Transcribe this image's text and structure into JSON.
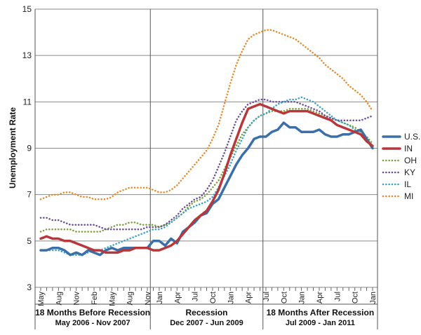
{
  "chart_data": {
    "type": "line",
    "ylabel": "Unemployment Rate",
    "ylim": [
      3,
      15
    ],
    "yticks": [
      3,
      5,
      7,
      9,
      11,
      13,
      15
    ],
    "grid": "horizontal",
    "legend_position": "right",
    "x": [
      "May",
      "Jun",
      "Jul",
      "Aug",
      "Sep",
      "Oct",
      "Nov",
      "Dec",
      "Jan",
      "Feb",
      "Mar",
      "Apr",
      "May",
      "Jun",
      "Jul",
      "Aug",
      "Sep",
      "Oct",
      "Nov",
      "Dec",
      "Jan",
      "Feb",
      "Mar",
      "Apr",
      "May",
      "Jun",
      "Jul",
      "Aug",
      "Sep",
      "Oct",
      "Nov",
      "Dec",
      "Jan",
      "Feb",
      "Mar",
      "Apr",
      "May",
      "Jun",
      "Jul",
      "Aug",
      "Sep",
      "Oct",
      "Nov",
      "Dec",
      "Jan",
      "Feb",
      "Mar",
      "Apr",
      "May",
      "Jun",
      "Jul",
      "Aug",
      "Sep",
      "Oct",
      "Nov",
      "Dec",
      "Jan"
    ],
    "x_tick_labels": [
      {
        "i": 0,
        "label": "May"
      },
      {
        "i": 3,
        "label": "Aug"
      },
      {
        "i": 6,
        "label": "Nov"
      },
      {
        "i": 9,
        "label": "Feb"
      },
      {
        "i": 12,
        "label": "May"
      },
      {
        "i": 15,
        "label": "Aug"
      },
      {
        "i": 18,
        "label": "Nov"
      },
      {
        "i": 20,
        "label": "Jan"
      },
      {
        "i": 23,
        "label": "Apr"
      },
      {
        "i": 26,
        "label": "Jul"
      },
      {
        "i": 29,
        "label": "Oct"
      },
      {
        "i": 32,
        "label": "Jan"
      },
      {
        "i": 35,
        "label": "Apr"
      },
      {
        "i": 38,
        "label": "Jul"
      },
      {
        "i": 41,
        "label": "Oct"
      },
      {
        "i": 44,
        "label": "Jan"
      },
      {
        "i": 47,
        "label": "Apr"
      },
      {
        "i": 50,
        "label": "Jul"
      },
      {
        "i": 53,
        "label": "Oct"
      },
      {
        "i": 56,
        "label": "Jan"
      }
    ],
    "periods": [
      {
        "title": "18 Months Before Recession",
        "subtitle": "May 2006 - Nov 2007",
        "start": 0,
        "end": 18
      },
      {
        "title": "Recession",
        "subtitle": "Dec 2007 - Jun 2009",
        "start": 19,
        "end": 37
      },
      {
        "title": "18 Months After Recession",
        "subtitle": "Jul 2009 - Jan 2011",
        "start": 38,
        "end": 56
      }
    ],
    "series": [
      {
        "name": "U.S.",
        "color": "#3b6fa8",
        "style": "solid",
        "width": 3.5,
        "values": [
          4.6,
          4.6,
          4.7,
          4.7,
          4.6,
          4.4,
          4.5,
          4.4,
          4.6,
          4.5,
          4.4,
          4.6,
          4.7,
          4.6,
          4.7,
          4.7,
          4.7,
          4.7,
          4.7,
          5.0,
          5.0,
          4.8,
          5.1,
          4.9,
          5.4,
          5.6,
          5.8,
          6.1,
          6.2,
          6.6,
          6.8,
          7.3,
          7.8,
          8.3,
          8.7,
          9.0,
          9.4,
          9.5,
          9.5,
          9.7,
          9.8,
          10.1,
          9.9,
          9.9,
          9.7,
          9.7,
          9.7,
          9.8,
          9.6,
          9.5,
          9.5,
          9.6,
          9.6,
          9.7,
          9.8,
          9.4,
          9.0
        ]
      },
      {
        "name": "IN",
        "color": "#b8373a",
        "style": "solid",
        "width": 3.5,
        "values": [
          5.1,
          5.2,
          5.1,
          5.1,
          5.0,
          5.0,
          4.9,
          4.8,
          4.7,
          4.6,
          4.6,
          4.5,
          4.5,
          4.5,
          4.6,
          4.6,
          4.7,
          4.7,
          4.7,
          4.6,
          4.6,
          4.7,
          4.8,
          5.0,
          5.3,
          5.6,
          5.9,
          6.1,
          6.3,
          6.7,
          7.2,
          7.9,
          8.7,
          9.4,
          10.1,
          10.7,
          10.8,
          10.9,
          10.8,
          10.7,
          10.6,
          10.5,
          10.6,
          10.6,
          10.6,
          10.6,
          10.5,
          10.4,
          10.3,
          10.2,
          10.0,
          9.9,
          9.8,
          9.7,
          9.6,
          9.3,
          9.1
        ]
      },
      {
        "name": "OH",
        "color": "#7aa03c",
        "style": "dotted",
        "width": 2.5,
        "values": [
          5.4,
          5.5,
          5.5,
          5.5,
          5.5,
          5.5,
          5.4,
          5.4,
          5.4,
          5.4,
          5.4,
          5.5,
          5.6,
          5.7,
          5.7,
          5.8,
          5.8,
          5.7,
          5.7,
          5.7,
          5.6,
          5.7,
          5.8,
          6.0,
          6.2,
          6.5,
          6.7,
          6.8,
          7.0,
          7.3,
          7.6,
          8.1,
          8.6,
          9.1,
          9.6,
          9.9,
          10.2,
          10.4,
          10.5,
          10.6,
          10.6,
          10.6,
          10.7,
          10.7,
          10.7,
          10.7,
          10.6,
          10.5,
          10.4,
          10.3,
          10.2,
          10.1,
          10.0,
          9.9,
          9.7,
          9.5,
          9.2
        ]
      },
      {
        "name": "KY",
        "color": "#6b4c9a",
        "style": "dotted",
        "width": 2.5,
        "values": [
          6.0,
          6.0,
          5.9,
          5.9,
          5.8,
          5.7,
          5.7,
          5.7,
          5.7,
          5.7,
          5.6,
          5.5,
          5.5,
          5.5,
          5.5,
          5.5,
          5.5,
          5.5,
          5.6,
          5.6,
          5.6,
          5.7,
          5.9,
          6.1,
          6.4,
          6.6,
          6.8,
          6.9,
          7.2,
          7.6,
          8.2,
          8.8,
          9.5,
          10.2,
          10.6,
          10.9,
          11.0,
          11.1,
          11.1,
          11.0,
          11.0,
          11.0,
          11.0,
          11.0,
          10.9,
          10.8,
          10.7,
          10.6,
          10.4,
          10.3,
          10.2,
          10.2,
          10.2,
          10.2,
          10.2,
          10.3,
          10.4
        ]
      },
      {
        "name": "IL",
        "color": "#3aa3c4",
        "style": "dotted",
        "width": 2.5,
        "values": [
          4.6,
          4.6,
          4.6,
          4.6,
          4.5,
          4.4,
          4.4,
          4.4,
          4.5,
          4.6,
          4.6,
          4.7,
          4.8,
          4.9,
          5.0,
          5.1,
          5.2,
          5.3,
          5.4,
          5.5,
          5.5,
          5.6,
          5.8,
          6.0,
          6.2,
          6.4,
          6.5,
          6.6,
          6.7,
          6.9,
          7.3,
          7.8,
          8.3,
          8.9,
          9.4,
          9.9,
          10.2,
          10.4,
          10.5,
          10.7,
          10.9,
          11.0,
          11.1,
          11.1,
          11.2,
          11.1,
          11.0,
          10.8,
          10.6,
          10.4,
          10.2,
          10.1,
          10.0,
          9.8,
          9.6,
          9.4,
          9.1
        ]
      },
      {
        "name": "MI",
        "color": "#e8892c",
        "style": "dotted",
        "width": 2.5,
        "values": [
          6.8,
          6.9,
          7.0,
          7.0,
          7.1,
          7.1,
          7.0,
          6.9,
          6.9,
          6.8,
          6.8,
          6.8,
          6.9,
          7.1,
          7.2,
          7.3,
          7.3,
          7.3,
          7.3,
          7.2,
          7.1,
          7.1,
          7.2,
          7.4,
          7.7,
          8.0,
          8.3,
          8.6,
          8.9,
          9.4,
          10.0,
          10.9,
          11.8,
          12.6,
          13.2,
          13.7,
          13.9,
          14.0,
          14.1,
          14.1,
          14.0,
          13.9,
          13.8,
          13.7,
          13.5,
          13.3,
          13.1,
          12.9,
          12.6,
          12.4,
          12.2,
          12.0,
          11.7,
          11.5,
          11.3,
          11.0,
          10.6
        ]
      }
    ]
  }
}
